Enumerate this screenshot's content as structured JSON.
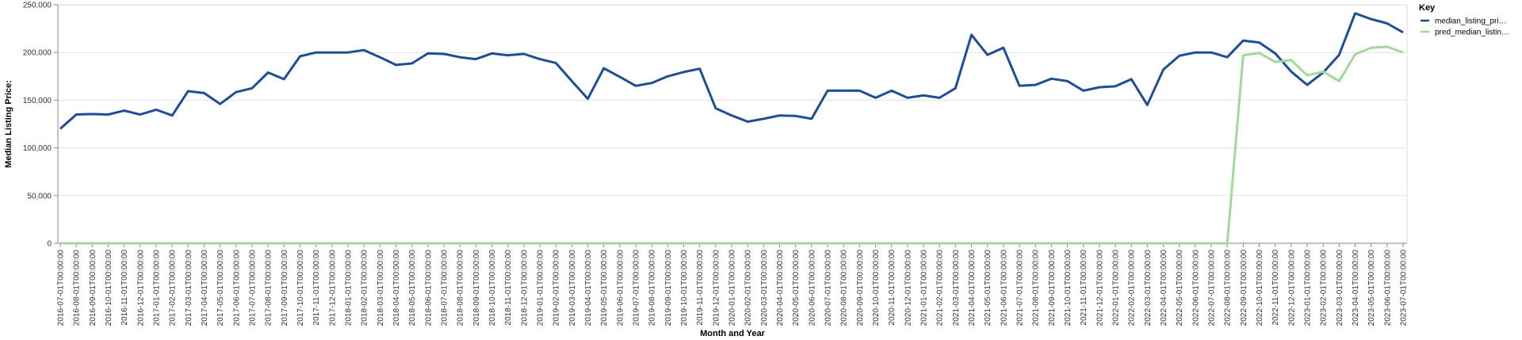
{
  "chart_data": {
    "type": "line",
    "xlabel": "Month and Year",
    "ylabel": "Median Listing Price:",
    "ylim": [
      0,
      250000
    ],
    "yticks": [
      0,
      50000,
      100000,
      150000,
      200000,
      250000
    ],
    "ytick_labels": [
      "0",
      "50,000",
      "100,000",
      "150,000",
      "200,000",
      "250,000"
    ],
    "grid": true,
    "legend": {
      "title": "Key",
      "placement": "right"
    },
    "x": [
      "2016-07-01T00:00:00",
      "2016-08-01T00:00:00",
      "2016-09-01T00:00:00",
      "2016-10-01T00:00:00",
      "2016-11-01T00:00:00",
      "2016-12-01T00:00:00",
      "2017-01-01T00:00:00",
      "2017-02-01T00:00:00",
      "2017-03-01T00:00:00",
      "2017-04-01T00:00:00",
      "2017-05-01T00:00:00",
      "2017-06-01T00:00:00",
      "2017-07-01T00:00:00",
      "2017-08-01T00:00:00",
      "2017-09-01T00:00:00",
      "2017-10-01T00:00:00",
      "2017-11-01T00:00:00",
      "2017-12-01T00:00:00",
      "2018-01-01T00:00:00",
      "2018-02-01T00:00:00",
      "2018-03-01T00:00:00",
      "2018-04-01T00:00:00",
      "2018-05-01T00:00:00",
      "2018-06-01T00:00:00",
      "2018-07-01T00:00:00",
      "2018-08-01T00:00:00",
      "2018-09-01T00:00:00",
      "2018-10-01T00:00:00",
      "2018-11-01T00:00:00",
      "2018-12-01T00:00:00",
      "2019-01-01T00:00:00",
      "2019-02-01T00:00:00",
      "2019-03-01T00:00:00",
      "2019-04-01T00:00:00",
      "2019-05-01T00:00:00",
      "2019-06-01T00:00:00",
      "2019-07-01T00:00:00",
      "2019-08-01T00:00:00",
      "2019-09-01T00:00:00",
      "2019-10-01T00:00:00",
      "2019-11-01T00:00:00",
      "2019-12-01T00:00:00",
      "2020-01-01T00:00:00",
      "2020-02-01T00:00:00",
      "2020-03-01T00:00:00",
      "2020-04-01T00:00:00",
      "2020-05-01T00:00:00",
      "2020-06-01T00:00:00",
      "2020-07-01T00:00:00",
      "2020-08-01T00:00:00",
      "2020-09-01T00:00:00",
      "2020-10-01T00:00:00",
      "2020-11-01T00:00:00",
      "2020-12-01T00:00:00",
      "2021-01-01T00:00:00",
      "2021-02-01T00:00:00",
      "2021-03-01T00:00:00",
      "2021-04-01T00:00:00",
      "2021-05-01T00:00:00",
      "2021-06-01T00:00:00",
      "2021-07-01T00:00:00",
      "2021-08-01T00:00:00",
      "2021-09-01T00:00:00",
      "2021-10-01T00:00:00",
      "2021-11-01T00:00:00",
      "2021-12-01T00:00:00",
      "2022-01-01T00:00:00",
      "2022-02-01T00:00:00",
      "2022-03-01T00:00:00",
      "2022-04-01T00:00:00",
      "2022-05-01T00:00:00",
      "2022-06-01T00:00:00",
      "2022-07-01T00:00:00",
      "2022-08-01T00:00:00",
      "2022-09-01T00:00:00",
      "2022-10-01T00:00:00",
      "2022-11-01T00:00:00",
      "2022-12-01T00:00:00",
      "2023-01-01T00:00:00",
      "2023-02-01T00:00:00",
      "2023-03-01T00:00:00",
      "2023-04-01T00:00:00",
      "2023-05-01T00:00:00",
      "2023-06-01T00:00:00",
      "2023-07-01T00:00:00"
    ],
    "series": [
      {
        "name": "median_listing_pri…",
        "color": "#1f4e96",
        "values": [
          120000,
          135000,
          135500,
          135000,
          139000,
          135000,
          140000,
          134000,
          159500,
          157500,
          146000,
          158500,
          162500,
          179000,
          172000,
          196000,
          200000,
          200000,
          200000,
          202500,
          195000,
          187000,
          188500,
          199000,
          198500,
          195000,
          193000,
          199000,
          197000,
          198500,
          193000,
          189000,
          170000,
          151500,
          183500,
          174500,
          165000,
          168000,
          175000,
          179500,
          183000,
          141500,
          134000,
          127500,
          130500,
          134000,
          133500,
          130500,
          160000,
          160000,
          160000,
          152500,
          160000,
          152500,
          155000,
          152500,
          162500,
          218500,
          197500,
          205000,
          165000,
          166000,
          172500,
          170000,
          160000,
          163500,
          164500,
          172000,
          145000,
          182000,
          196500,
          200000,
          200000,
          195000,
          212500,
          210500,
          199000,
          180000,
          166000,
          179000,
          197500,
          241000,
          235000,
          230500,
          221000
        ]
      },
      {
        "name": "pred_median_listin…",
        "color": "#a1d99b",
        "values": [
          0,
          0,
          0,
          0,
          0,
          0,
          0,
          0,
          0,
          0,
          0,
          0,
          0,
          0,
          0,
          0,
          0,
          0,
          0,
          0,
          0,
          0,
          0,
          0,
          0,
          0,
          0,
          0,
          0,
          0,
          0,
          0,
          0,
          0,
          0,
          0,
          0,
          0,
          0,
          0,
          0,
          0,
          0,
          0,
          0,
          0,
          0,
          0,
          0,
          0,
          0,
          0,
          0,
          0,
          0,
          0,
          0,
          0,
          0,
          0,
          0,
          0,
          0,
          0,
          0,
          0,
          0,
          0,
          0,
          0,
          0,
          0,
          0,
          0,
          197000,
          199500,
          190000,
          192000,
          176000,
          180000,
          170000,
          198000,
          205000,
          206000,
          200000
        ]
      }
    ]
  }
}
